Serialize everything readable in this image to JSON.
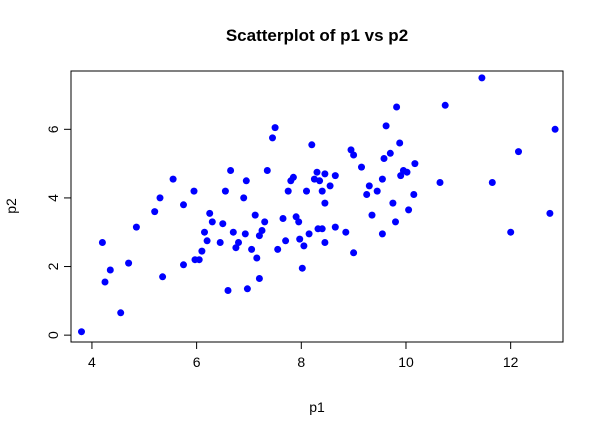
{
  "chart_data": {
    "type": "scatter",
    "title": "Scatterplot of p1 vs p2",
    "xlabel": "p1",
    "ylabel": "p2",
    "xlim": [
      3.6,
      13.0
    ],
    "ylim": [
      -0.2,
      7.7
    ],
    "xticks": [
      4,
      6,
      8,
      10,
      12
    ],
    "yticks": [
      0,
      2,
      4,
      6
    ],
    "grid": false,
    "point_color": "#0000ff",
    "points": [
      [
        3.8,
        0.1
      ],
      [
        4.2,
        2.7
      ],
      [
        4.25,
        1.55
      ],
      [
        4.35,
        1.9
      ],
      [
        4.55,
        0.65
      ],
      [
        4.7,
        2.1
      ],
      [
        4.85,
        3.15
      ],
      [
        5.2,
        3.6
      ],
      [
        5.3,
        4.0
      ],
      [
        5.35,
        1.7
      ],
      [
        5.55,
        4.55
      ],
      [
        5.75,
        3.8
      ],
      [
        5.75,
        2.05
      ],
      [
        5.95,
        4.2
      ],
      [
        5.97,
        2.2
      ],
      [
        6.05,
        2.2
      ],
      [
        6.1,
        2.45
      ],
      [
        6.15,
        3.0
      ],
      [
        6.2,
        2.75
      ],
      [
        6.25,
        3.55
      ],
      [
        6.3,
        3.3
      ],
      [
        6.45,
        2.7
      ],
      [
        6.5,
        3.25
      ],
      [
        6.55,
        4.2
      ],
      [
        6.6,
        1.3
      ],
      [
        6.65,
        4.8
      ],
      [
        6.7,
        3.0
      ],
      [
        6.75,
        2.55
      ],
      [
        6.8,
        2.7
      ],
      [
        6.9,
        4.0
      ],
      [
        6.93,
        2.95
      ],
      [
        6.95,
        4.5
      ],
      [
        6.97,
        1.35
      ],
      [
        7.05,
        2.5
      ],
      [
        7.12,
        3.5
      ],
      [
        7.15,
        2.25
      ],
      [
        7.2,
        2.9
      ],
      [
        7.2,
        1.65
      ],
      [
        7.25,
        3.05
      ],
      [
        7.3,
        3.3
      ],
      [
        7.35,
        4.8
      ],
      [
        7.45,
        5.75
      ],
      [
        7.5,
        6.05
      ],
      [
        7.55,
        2.5
      ],
      [
        7.65,
        3.4
      ],
      [
        7.7,
        2.75
      ],
      [
        7.75,
        4.2
      ],
      [
        7.8,
        4.5
      ],
      [
        7.85,
        4.6
      ],
      [
        7.9,
        3.45
      ],
      [
        7.95,
        3.3
      ],
      [
        7.97,
        2.8
      ],
      [
        8.02,
        1.95
      ],
      [
        8.05,
        2.6
      ],
      [
        8.1,
        4.2
      ],
      [
        8.15,
        2.95
      ],
      [
        8.2,
        5.55
      ],
      [
        8.25,
        4.55
      ],
      [
        8.3,
        4.75
      ],
      [
        8.32,
        3.1
      ],
      [
        8.35,
        4.5
      ],
      [
        8.4,
        3.1
      ],
      [
        8.45,
        4.7
      ],
      [
        8.4,
        4.2
      ],
      [
        8.45,
        3.85
      ],
      [
        8.45,
        2.7
      ],
      [
        8.55,
        4.35
      ],
      [
        8.65,
        3.15
      ],
      [
        8.65,
        4.65
      ],
      [
        8.85,
        3.0
      ],
      [
        8.95,
        5.4
      ],
      [
        9.0,
        5.25
      ],
      [
        9.0,
        2.4
      ],
      [
        9.15,
        4.9
      ],
      [
        9.25,
        4.1
      ],
      [
        9.3,
        4.35
      ],
      [
        9.35,
        3.5
      ],
      [
        9.45,
        4.2
      ],
      [
        9.55,
        2.95
      ],
      [
        9.55,
        4.55
      ],
      [
        9.58,
        5.15
      ],
      [
        9.62,
        6.1
      ],
      [
        9.7,
        5.3
      ],
      [
        9.75,
        3.85
      ],
      [
        9.8,
        3.3
      ],
      [
        9.82,
        6.65
      ],
      [
        9.88,
        5.6
      ],
      [
        9.9,
        4.65
      ],
      [
        9.95,
        4.8
      ],
      [
        10.05,
        3.65
      ],
      [
        10.02,
        4.75
      ],
      [
        10.15,
        4.1
      ],
      [
        10.17,
        5.0
      ],
      [
        10.65,
        4.45
      ],
      [
        10.75,
        6.7
      ],
      [
        11.45,
        7.5
      ],
      [
        11.65,
        4.45
      ],
      [
        12.0,
        3.0
      ],
      [
        12.15,
        5.35
      ],
      [
        12.75,
        3.55
      ],
      [
        12.85,
        6.0
      ]
    ]
  }
}
